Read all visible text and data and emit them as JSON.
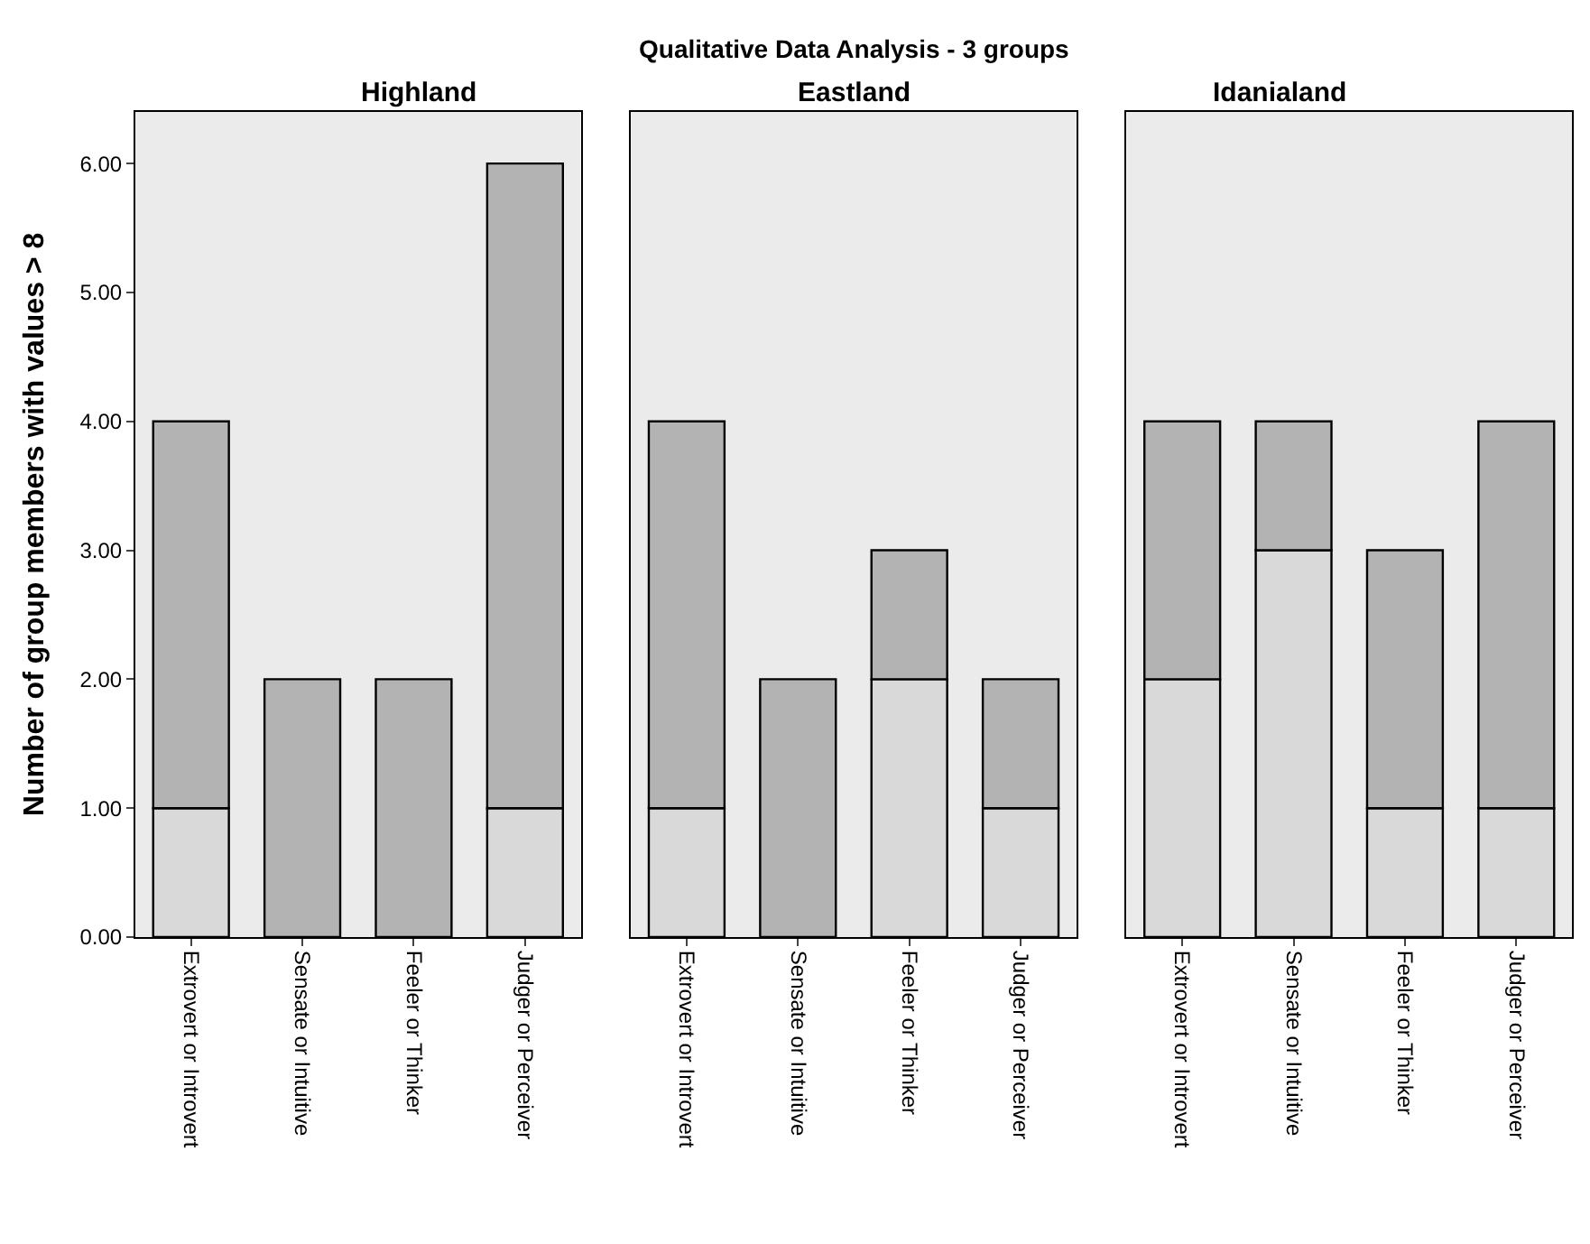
{
  "chart_data": [
    {
      "type": "bar",
      "subtitle": "Highland",
      "ylabel": "Number of group members with values > 8",
      "categories": [
        "Extrovert or Introvert",
        "Sensate or Intuitive",
        "Feeler or Thinker",
        "Judger or Perceiver"
      ],
      "stacked": true,
      "grid": false,
      "series": [
        {
          "color": "#d9d9d9",
          "values": [
            1,
            0,
            0,
            1
          ]
        },
        {
          "color": "#b3b3b3",
          "values": [
            3,
            2,
            2,
            5
          ]
        }
      ],
      "ylim": [
        0,
        6.4
      ],
      "yticks": [
        {
          "value": 0,
          "label": "0.00"
        },
        {
          "value": 1,
          "label": "1.00"
        },
        {
          "value": 2,
          "label": "2.00"
        },
        {
          "value": 3,
          "label": "3.00"
        },
        {
          "value": 4,
          "label": "4.00"
        },
        {
          "value": 5,
          "label": "5.00"
        },
        {
          "value": 6,
          "label": "6.00"
        }
      ]
    },
    {
      "type": "bar",
      "title": "Qualitative Data Analysis - 3 groups",
      "subtitle": "Eastland",
      "categories": [
        "Extrovert or Introvert",
        "Sensate or Intuitive",
        "Feeler or Thinker",
        "Judger or Perceiver"
      ],
      "stacked": true,
      "grid": false,
      "tick_labels": "x",
      "series": [
        {
          "color": "#d9d9d9",
          "values": [
            1,
            0,
            2,
            1
          ]
        },
        {
          "color": "#b3b3b3",
          "values": [
            3,
            2,
            1,
            1
          ]
        }
      ],
      "ylim": [
        0,
        6.4
      ]
    },
    {
      "type": "bar",
      "subtitle": "Idanialand",
      "categories": [
        "Extrovert or Introvert",
        "Sensate or Intuitive",
        "Feeler or Thinker",
        "Judger or Perceiver"
      ],
      "stacked": true,
      "grid": false,
      "tick_labels": "x",
      "series": [
        {
          "color": "#d9d9d9",
          "values": [
            2,
            3,
            1,
            1
          ]
        },
        {
          "color": "#b3b3b3",
          "values": [
            2,
            1,
            2,
            3
          ]
        }
      ],
      "ylim": [
        0,
        6.4
      ]
    }
  ]
}
